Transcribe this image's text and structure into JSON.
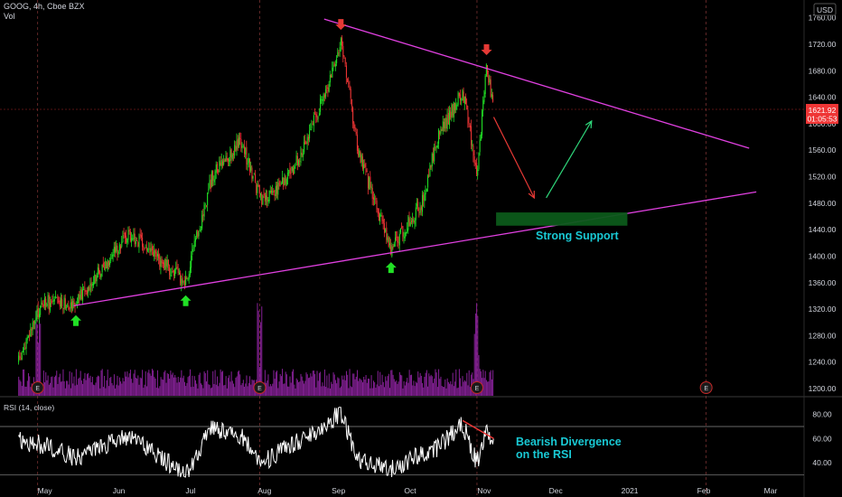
{
  "header": {
    "symbol_line": "GOOG, 4h, Cboe BZX",
    "volume_label": "Vol"
  },
  "currency": "USD",
  "price_tag": {
    "value": "1621.92",
    "countdown": "01:05:53"
  },
  "colors": {
    "background": "#000000",
    "up": "#26a69a",
    "up_bright": "#21e025",
    "down": "#ef3535",
    "trendline": "#e040e0",
    "volume": "#9c27b0",
    "rsi_line": "#ffffff",
    "support_zone": "#0c5a1a",
    "annotation_text": "#19c9d4",
    "arrow_down_red": "#e53935",
    "arrow_up_green": "#2fd67a"
  },
  "annotations": {
    "strong_support": "Strong Support",
    "bearish_divergence_line1": "Bearish Divergence",
    "bearish_divergence_line2": "on the RSI",
    "earnings_marker": "E"
  },
  "rsi": {
    "label": "RSI (14, close)"
  },
  "chart_data": {
    "type": "candlestick",
    "x_ticks": [
      "May",
      "Jun",
      "Jul",
      "Aug",
      "Sep",
      "Oct",
      "Nov",
      "Dec",
      "2021",
      "Feb",
      "Mar"
    ],
    "y_ticks": [
      1200,
      1240,
      1280,
      1320,
      1360,
      1400,
      1440,
      1480,
      1520,
      1560,
      1600,
      1640,
      1680,
      1720,
      1760
    ],
    "ylim": [
      1170,
      1780
    ],
    "rsi_ticks": [
      40,
      60,
      80
    ],
    "rsi_ylim": [
      28,
      88
    ],
    "price_path": [
      [
        "2020-04-20",
        1240
      ],
      [
        "2020-04-30",
        1330
      ],
      [
        "2020-05-14",
        1330
      ],
      [
        "2020-06-05",
        1435
      ],
      [
        "2020-06-29",
        1360
      ],
      [
        "2020-07-10",
        1520
      ],
      [
        "2020-07-22",
        1575
      ],
      [
        "2020-07-31",
        1480
      ],
      [
        "2020-08-13",
        1530
      ],
      [
        "2020-08-27",
        1650
      ],
      [
        "2020-09-02",
        1728
      ],
      [
        "2020-09-09",
        1560
      ],
      [
        "2020-09-23",
        1410
      ],
      [
        "2020-10-06",
        1480
      ],
      [
        "2020-10-12",
        1575
      ],
      [
        "2020-10-23",
        1650
      ],
      [
        "2020-10-29",
        1525
      ],
      [
        "2020-11-02",
        1690
      ],
      [
        "2020-11-05",
        1622
      ]
    ],
    "resistance_line": [
      [
        "2020-08-26",
        1758
      ],
      [
        "2021-02-20",
        1563
      ]
    ],
    "support_line": [
      [
        "2020-05-13",
        1325
      ],
      [
        "2021-02-23",
        1497
      ]
    ],
    "support_zone": {
      "x": [
        "2020-11-06",
        "2020-12-31"
      ],
      "y": [
        1446,
        1466
      ]
    },
    "projection_down": [
      [
        "2020-11-05",
        1610
      ],
      [
        "2020-11-22",
        1488
      ]
    ],
    "projection_up": [
      [
        "2020-11-27",
        1488
      ],
      [
        "2020-12-16",
        1604
      ]
    ],
    "earnings_dates": [
      "2020-04-28",
      "2020-07-30",
      "2020-10-29",
      "2021-02-02"
    ],
    "swing_low_markers": [
      "2020-05-14",
      "2020-06-29",
      "2020-09-23"
    ],
    "swing_high_markers": [
      "2020-09-02",
      "2020-11-02"
    ],
    "last_price": 1621.92,
    "rsi_path": [
      [
        "2020-04-20",
        58
      ],
      [
        "2020-04-30",
        55
      ],
      [
        "2020-05-14",
        44
      ],
      [
        "2020-06-05",
        62
      ],
      [
        "2020-06-29",
        30
      ],
      [
        "2020-07-10",
        70
      ],
      [
        "2020-07-22",
        62
      ],
      [
        "2020-07-31",
        40
      ],
      [
        "2020-08-13",
        55
      ],
      [
        "2020-08-27",
        72
      ],
      [
        "2020-09-02",
        82
      ],
      [
        "2020-09-09",
        42
      ],
      [
        "2020-09-23",
        34
      ],
      [
        "2020-10-06",
        48
      ],
      [
        "2020-10-12",
        52
      ],
      [
        "2020-10-23",
        72
      ],
      [
        "2020-10-29",
        40
      ],
      [
        "2020-11-02",
        66
      ],
      [
        "2020-11-05",
        56
      ]
    ],
    "rsi_divergence_line": [
      [
        "2020-10-23",
        75
      ],
      [
        "2020-11-05",
        60
      ]
    ]
  }
}
